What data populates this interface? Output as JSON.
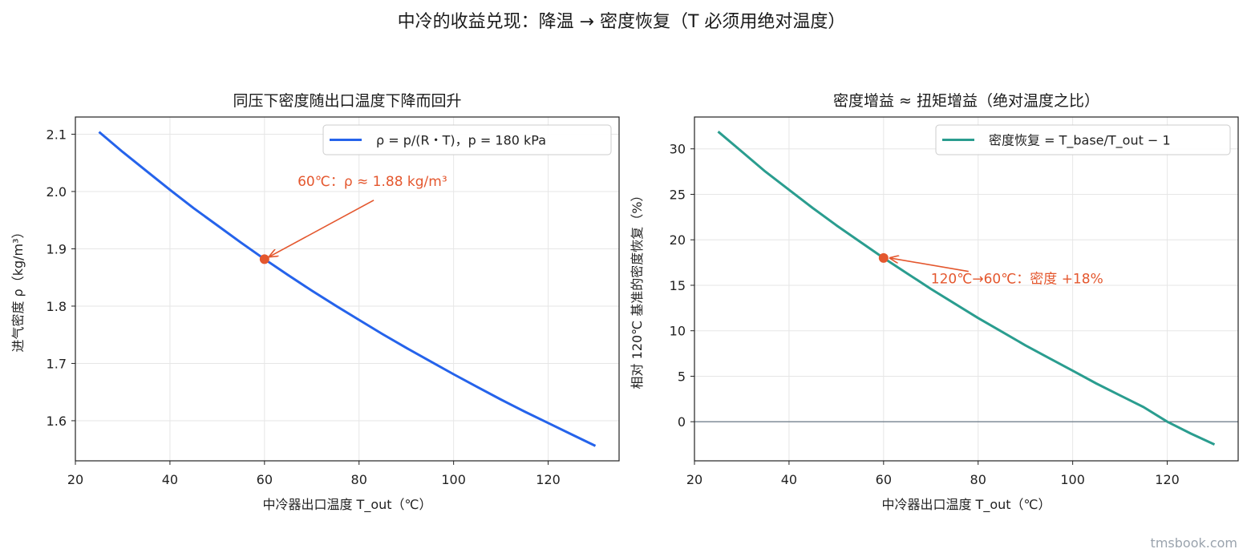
{
  "figure": {
    "suptitle": "中冷的收益兑现：降温 → 密度恢复（T 必须用绝对温度）",
    "watermark": "tmsbook.com"
  },
  "chart_data": [
    {
      "type": "line",
      "title": "同压下密度随出口温度下降而回升",
      "xlabel": "中冷器出口温度 T_out（℃）",
      "ylabel": "进气密度 ρ（kg/m³）",
      "xlim": [
        20,
        135
      ],
      "ylim": [
        1.53,
        2.13
      ],
      "xticks": [
        20,
        40,
        60,
        80,
        100,
        120
      ],
      "yticks": [
        1.6,
        1.7,
        1.8,
        1.9,
        2.0,
        2.1
      ],
      "ytick_labels": [
        "1.6",
        "1.7",
        "1.8",
        "1.9",
        "2.0",
        "2.1"
      ],
      "grid": true,
      "legend_position": "top-right",
      "series": [
        {
          "name": "ρ = p/(R・T)，p = 180 kPa",
          "color": "#2563eb",
          "x": [
            25,
            30,
            35,
            40,
            45,
            50,
            55,
            60,
            65,
            70,
            75,
            80,
            85,
            90,
            95,
            100,
            105,
            110,
            115,
            120,
            125,
            130
          ],
          "y": [
            2.104,
            2.069,
            2.036,
            2.003,
            1.971,
            1.941,
            1.911,
            1.882,
            1.854,
            1.827,
            1.801,
            1.776,
            1.751,
            1.727,
            1.704,
            1.681,
            1.659,
            1.637,
            1.616,
            1.596,
            1.576,
            1.556
          ]
        }
      ],
      "highlight_point": {
        "x": 60,
        "y": 1.882,
        "color": "#e4572e"
      },
      "annotation": {
        "text": "60℃：ρ ≈ 1.88 kg/m³",
        "color": "#e4572e",
        "text_x": 67,
        "text_y": 2.01
      }
    },
    {
      "type": "line",
      "title": "密度增益 ≈ 扭矩增益（绝对温度之比）",
      "xlabel": "中冷器出口温度 T_out（℃）",
      "ylabel": "相对 120℃ 基准的密度恢复（%）",
      "xlim": [
        20,
        135
      ],
      "ylim": [
        -4.3,
        33.5
      ],
      "xticks": [
        20,
        40,
        60,
        80,
        100,
        120
      ],
      "yticks": [
        0,
        5,
        10,
        15,
        20,
        25,
        30
      ],
      "ytick_labels": [
        "0",
        "5",
        "10",
        "15",
        "20",
        "25",
        "30"
      ],
      "grid": true,
      "zero_line": true,
      "legend_position": "top-right",
      "series": [
        {
          "name": "密度恢复 = T_base/T_out − 1",
          "color": "#2a9d8f",
          "x": [
            25,
            30,
            35,
            40,
            45,
            50,
            55,
            60,
            65,
            70,
            75,
            80,
            85,
            90,
            95,
            100,
            105,
            110,
            115,
            120,
            125,
            130
          ],
          "y": [
            31.9,
            29.7,
            27.5,
            25.5,
            23.5,
            21.6,
            19.8,
            18.0,
            16.3,
            14.6,
            13.0,
            11.4,
            9.9,
            8.4,
            7.0,
            5.6,
            4.2,
            2.9,
            1.6,
            0.0,
            -1.3,
            -2.5
          ]
        }
      ],
      "highlight_point": {
        "x": 60,
        "y": 18.0,
        "color": "#e4572e"
      },
      "annotation": {
        "text": "120℃→60℃：密度 +18%",
        "color": "#e4572e",
        "text_x": 70,
        "text_y": 15.2
      }
    }
  ]
}
